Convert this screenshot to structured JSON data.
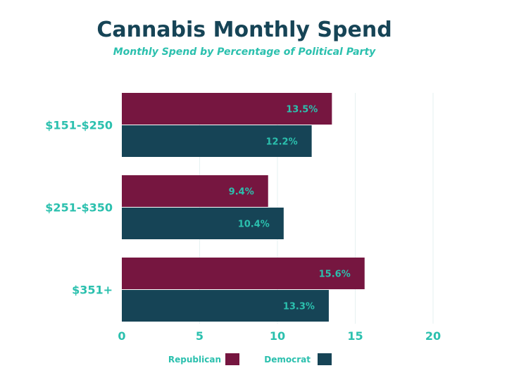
{
  "chart_data": {
    "type": "bar",
    "orientation": "horizontal",
    "title": "Cannabis Monthly Spend",
    "subtitle": "Monthly Spend by Percentage of Political Party",
    "categories": [
      "$151-$250",
      "$251-$350",
      "$351+"
    ],
    "series": [
      {
        "name": "Republican",
        "color": "#761640",
        "values": [
          13.5,
          9.4,
          15.6
        ],
        "labels": [
          "13.5%",
          "9.4%",
          "15.6%"
        ]
      },
      {
        "name": "Democrat",
        "color": "#164456",
        "values": [
          12.2,
          10.4,
          13.3
        ],
        "labels": [
          "12.2%",
          "10.4%",
          "13.3%"
        ]
      }
    ],
    "xlim": [
      0,
      20
    ],
    "xticks": [
      0,
      5,
      10,
      15,
      20
    ],
    "grid": true,
    "legend_position": "bottom"
  }
}
